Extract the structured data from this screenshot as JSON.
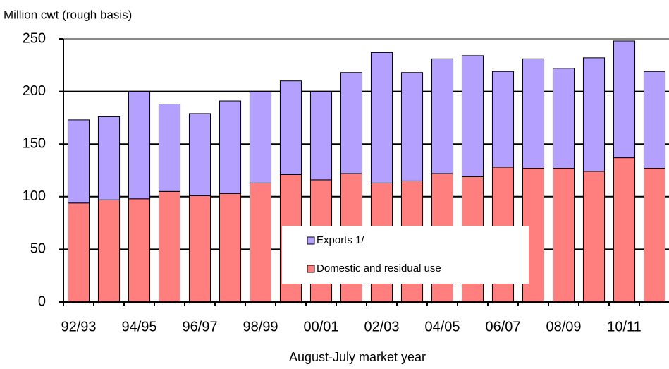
{
  "chart_data": {
    "type": "stacked-bar",
    "y_axis_label": "Million cwt (rough basis)",
    "x_axis_label": "August-July market year",
    "categories": [
      "92/93",
      null,
      "94/95",
      null,
      "96/97",
      null,
      "98/99",
      null,
      "00/01",
      null,
      "02/03",
      null,
      "04/05",
      null,
      "06/07",
      null,
      "08/09",
      null,
      "10/11",
      null
    ],
    "series": [
      {
        "name": "Domestic and residual use",
        "color": "#ff7f7f",
        "values": [
          94,
          97,
          98,
          105,
          101,
          103,
          113,
          121,
          116,
          122,
          113,
          115,
          122,
          119,
          128,
          127,
          127,
          124,
          137,
          127
        ]
      },
      {
        "name": "Exports 1/",
        "color": "#b3a0ff",
        "values": [
          79,
          79,
          102,
          83,
          78,
          88,
          87,
          89,
          84,
          96,
          124,
          103,
          109,
          115,
          91,
          104,
          95,
          108,
          111,
          92
        ]
      }
    ],
    "ylim": [
      0,
      250
    ],
    "yticks": [
      0,
      50,
      100,
      150,
      200,
      250
    ],
    "grid": true
  }
}
